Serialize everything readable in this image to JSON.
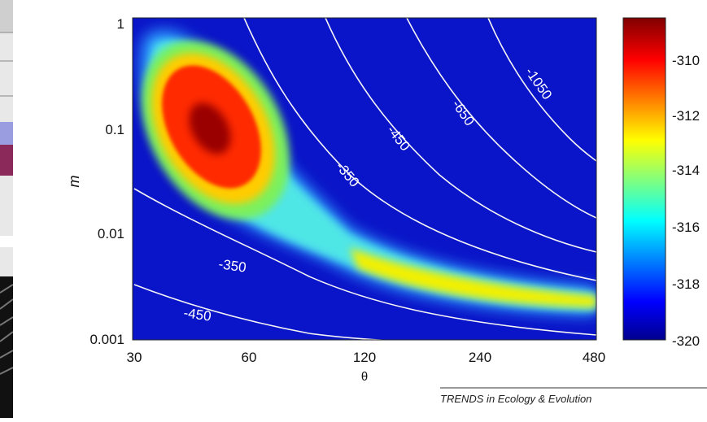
{
  "chart_data": {
    "type": "heatmap",
    "x_label": "θ",
    "y_label": "m",
    "x_scale": "log",
    "y_scale": "log",
    "x_ticks": [
      "30",
      "60",
      "120",
      "240",
      "480"
    ],
    "y_ticks": [
      "1",
      "0.1",
      "0.01",
      "0.001"
    ],
    "xlim": [
      30,
      480
    ],
    "ylim": [
      0.001,
      1
    ],
    "colorbar": {
      "ticks": [
        "-310",
        "-312",
        "-314",
        "-316",
        "-318",
        "-320"
      ],
      "min": -320,
      "max": -309,
      "colormap": "jet"
    },
    "peak": {
      "theta": 50,
      "m": 0.09,
      "value": -309
    },
    "contour_labels": [
      {
        "text": "-1050",
        "theta": 330,
        "m": 0.35
      },
      {
        "text": "-650",
        "theta": 190,
        "m": 0.17
      },
      {
        "text": "-450",
        "theta": 125,
        "m": 0.12
      },
      {
        "text": "-350",
        "theta": 95,
        "m": 0.045
      },
      {
        "text": "-350",
        "theta": 58,
        "m": 0.0045
      },
      {
        "text": "-450",
        "theta": 48,
        "m": 0.0017
      }
    ]
  },
  "credit": "TRENDS in Ecology & Evolution"
}
